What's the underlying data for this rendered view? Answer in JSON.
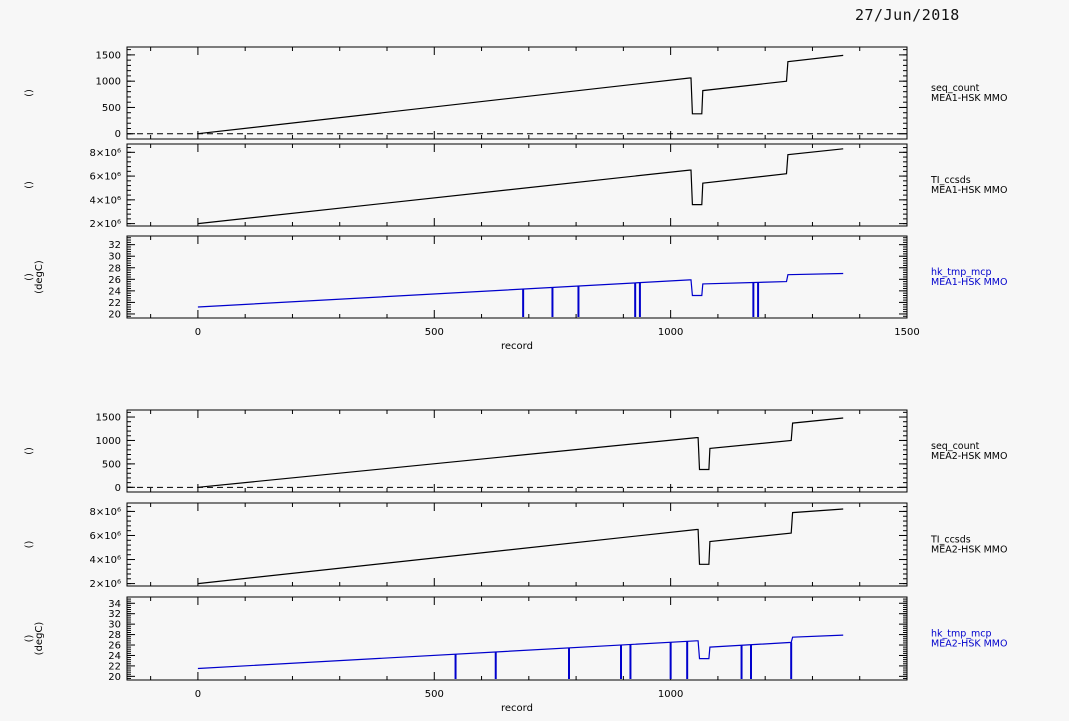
{
  "page": {
    "date": "27/Jun/2018"
  },
  "chart_data": [
    {
      "type": "line",
      "group": "MEA1",
      "xlabel": "record",
      "xlim": [
        -150,
        1500
      ],
      "xticks": [
        0,
        500,
        1000,
        1500
      ],
      "xticklabels": [
        "0",
        "500",
        "1000",
        "1500"
      ],
      "panels": [
        {
          "ylabel": "()",
          "ylim": [
            -100,
            1650
          ],
          "yticks": [
            0,
            500,
            1000,
            1500
          ],
          "yticklabels": [
            "0",
            "500",
            "1000",
            "1500"
          ],
          "zero_line": true,
          "name": "seq_count",
          "source": "MEA1-HSK MMO",
          "color": "#000000",
          "points": [
            [
              0,
              0
            ],
            [
              1040,
              1060
            ],
            [
              1043,
              1060
            ],
            [
              1046,
              380
            ],
            [
              1066,
              380
            ],
            [
              1068,
              820
            ],
            [
              1245,
              1000
            ],
            [
              1248,
              1370
            ],
            [
              1365,
              1490
            ]
          ],
          "spikes": []
        },
        {
          "ylabel": "()",
          "ylim": [
            1800000,
            8700000
          ],
          "yticks": [
            2000000,
            4000000,
            6000000,
            8000000
          ],
          "yticklabels": [
            "2×10⁶",
            "4×10⁶",
            "6×10⁶",
            "8×10⁶"
          ],
          "zero_line": false,
          "name": "TI_ccsds",
          "source": "MEA1-HSK MMO",
          "color": "#000000",
          "points": [
            [
              0,
              2000000
            ],
            [
              1040,
              6500000
            ],
            [
              1043,
              6500000
            ],
            [
              1046,
              3600000
            ],
            [
              1066,
              3600000
            ],
            [
              1068,
              5400000
            ],
            [
              1245,
              6200000
            ],
            [
              1248,
              7800000
            ],
            [
              1365,
              8300000
            ]
          ],
          "spikes": []
        },
        {
          "ylabel": "()",
          "ylabel2": "(degC)",
          "ylim": [
            19.3,
            33.5
          ],
          "yticks": [
            20,
            22,
            24,
            26,
            28,
            30,
            32
          ],
          "yticklabels": [
            "20",
            "22",
            "24",
            "26",
            "28",
            "30",
            "32"
          ],
          "zero_line": false,
          "name": "hk_tmp_mcp",
          "source": "MEA1-HSK MMO",
          "color": "#0000cc",
          "points": [
            [
              0,
              21.2
            ],
            [
              1040,
              25.9
            ],
            [
              1043,
              25.9
            ],
            [
              1046,
              23.2
            ],
            [
              1066,
              23.2
            ],
            [
              1068,
              25.2
            ],
            [
              1245,
              25.6
            ],
            [
              1248,
              26.8
            ],
            [
              1365,
              27
            ]
          ],
          "spikes": [
            688,
            750,
            805,
            925,
            935,
            1175,
            1185
          ]
        }
      ]
    },
    {
      "type": "line",
      "group": "MEA2",
      "xlabel": "record",
      "xlim": [
        -150,
        1500
      ],
      "xticks": [
        0,
        500,
        1000
      ],
      "xticklabels": [
        "0",
        "500",
        "1000"
      ],
      "panels": [
        {
          "ylabel": "()",
          "ylim": [
            -100,
            1650
          ],
          "yticks": [
            0,
            500,
            1000,
            1500
          ],
          "yticklabels": [
            "0",
            "500",
            "1000",
            "1500"
          ],
          "zero_line": true,
          "name": "seq_count",
          "source": "MEA2-HSK MMO",
          "color": "#000000",
          "points": [
            [
              0,
              0
            ],
            [
              1055,
              1060
            ],
            [
              1058,
              1060
            ],
            [
              1061,
              380
            ],
            [
              1081,
              380
            ],
            [
              1083,
              830
            ],
            [
              1255,
              1000
            ],
            [
              1258,
              1370
            ],
            [
              1365,
              1480
            ]
          ],
          "spikes": []
        },
        {
          "ylabel": "()",
          "ylim": [
            1800000,
            8700000
          ],
          "yticks": [
            2000000,
            4000000,
            6000000,
            8000000
          ],
          "yticklabels": [
            "2×10⁶",
            "4×10⁶",
            "6×10⁶",
            "8×10⁶"
          ],
          "zero_line": false,
          "name": "TI_ccsds",
          "source": "MEA2-HSK MMO",
          "color": "#000000",
          "points": [
            [
              0,
              2000000
            ],
            [
              1055,
              6500000
            ],
            [
              1058,
              6500000
            ],
            [
              1061,
              3600000
            ],
            [
              1081,
              3600000
            ],
            [
              1083,
              5500000
            ],
            [
              1255,
              6200000
            ],
            [
              1258,
              7900000
            ],
            [
              1365,
              8200000
            ]
          ],
          "spikes": []
        },
        {
          "ylabel": "()",
          "ylabel2": "(degC)",
          "ylim": [
            19.3,
            35.2
          ],
          "yticks": [
            20,
            22,
            24,
            26,
            28,
            30,
            32,
            34
          ],
          "yticklabels": [
            "20",
            "22",
            "24",
            "26",
            "28",
            "30",
            "32",
            "34"
          ],
          "zero_line": false,
          "name": "hk_tmp_mcp",
          "source": "MEA2-HSK MMO",
          "color": "#0000cc",
          "points": [
            [
              0,
              21.5
            ],
            [
              1055,
              26.8
            ],
            [
              1058,
              26.8
            ],
            [
              1061,
              23.4
            ],
            [
              1081,
              23.4
            ],
            [
              1083,
              25.6
            ],
            [
              1255,
              26.5
            ],
            [
              1258,
              27.5
            ],
            [
              1365,
              27.9
            ]
          ],
          "spikes": [
            545,
            630,
            785,
            895,
            915,
            1000,
            1035,
            1150,
            1170,
            1255
          ]
        }
      ]
    }
  ]
}
